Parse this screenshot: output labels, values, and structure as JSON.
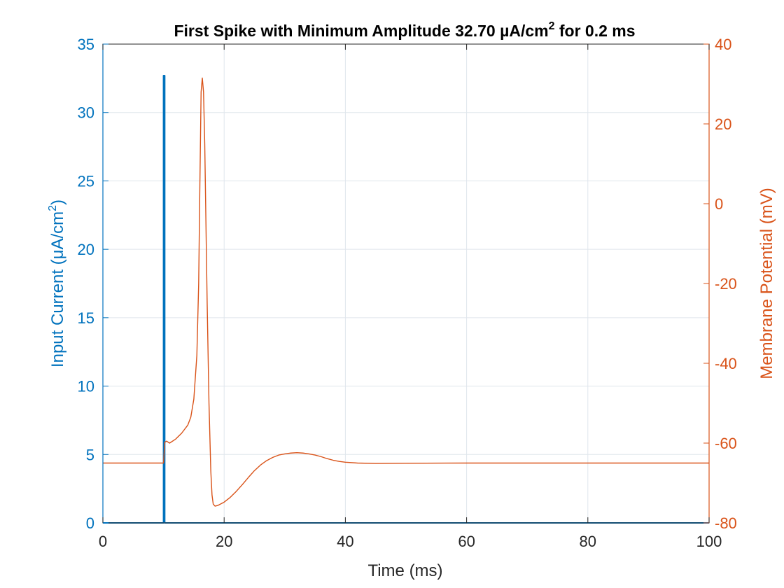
{
  "chart_data": {
    "type": "line",
    "title": "First Spike with Minimum Amplitude 32.70 µA/cm",
    "title_superscript": "2",
    "title_suffix": " for 0.2 ms",
    "xlabel": "Time (ms)",
    "ylabel_left": "Input Current (μA/cm",
    "ylabel_left_superscript": "2",
    "ylabel_left_suffix": ")",
    "ylabel_right": "Membrane Potential (mV)",
    "xlim": [
      0,
      100
    ],
    "ylim_left": [
      0,
      35
    ],
    "ylim_right": [
      -80,
      40
    ],
    "xticks": [
      0,
      20,
      40,
      60,
      80,
      100
    ],
    "yticks_left": [
      0,
      5,
      10,
      15,
      20,
      25,
      30,
      35
    ],
    "yticks_right": [
      -80,
      -60,
      -40,
      -20,
      0,
      20,
      40
    ],
    "grid": true,
    "colors": {
      "left": "#0072BD",
      "right": "#D95319",
      "grid": "#dfe5ec",
      "axis": "#262626"
    },
    "series": [
      {
        "axis": "left",
        "x": [
          0,
          10,
          10,
          10.2,
          10.2,
          100
        ],
        "y": [
          0,
          0,
          32.7,
          32.7,
          0,
          0
        ]
      },
      {
        "axis": "right",
        "x": [
          0,
          10,
          10.2,
          10.5,
          11,
          12,
          13,
          14,
          14.5,
          15,
          15.5,
          15.8,
          16,
          16.2,
          16.4,
          16.6,
          16.8,
          17,
          17.2,
          17.5,
          17.8,
          18,
          18.2,
          18.5,
          19,
          20,
          21,
          22,
          23,
          24,
          25,
          26,
          27,
          28,
          29,
          30,
          31,
          32,
          33,
          34,
          35,
          36,
          37,
          38,
          39,
          40,
          42,
          45,
          50,
          60,
          70,
          80,
          90,
          100
        ],
        "y": [
          -65,
          -65,
          -59.8,
          -59.5,
          -60,
          -59,
          -57.5,
          -55.5,
          -53.5,
          -49,
          -38,
          -20,
          5,
          28,
          31.5,
          28,
          15,
          -5,
          -25,
          -50,
          -67,
          -73,
          -75.3,
          -75.8,
          -75.6,
          -74.8,
          -73.6,
          -72.1,
          -70.4,
          -68.6,
          -66.9,
          -65.5,
          -64.4,
          -63.6,
          -63,
          -62.7,
          -62.5,
          -62.4,
          -62.5,
          -62.7,
          -63,
          -63.4,
          -63.9,
          -64.3,
          -64.6,
          -64.8,
          -65,
          -65.1,
          -65.05,
          -65,
          -65,
          -65,
          -65,
          -65
        ]
      }
    ]
  }
}
